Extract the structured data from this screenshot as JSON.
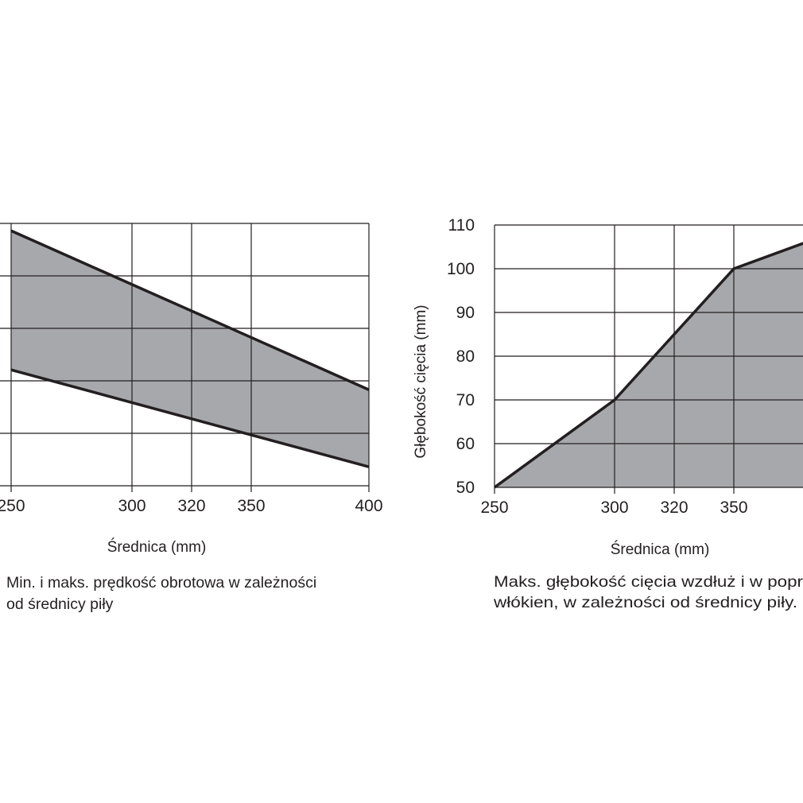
{
  "chart_data": [
    {
      "type": "area",
      "xlabel": "Średnica (mm)",
      "ylabel": "",
      "caption": [
        "Min. i maks. prędkość obrotowa w zależności",
        "od średnicy piły"
      ],
      "x_ticks": [
        250,
        300,
        320,
        350,
        400
      ],
      "x": [
        250,
        400
      ],
      "ylim": [
        0,
        5
      ],
      "y_tick_labels_visible": false,
      "grid": true,
      "series": [
        {
          "values": [
            4.86,
            1.83
          ]
        },
        {
          "values": [
            2.21,
            0.36
          ]
        }
      ],
      "fill_color": "#a7a8ab",
      "line_color": "#231f20"
    },
    {
      "type": "area",
      "xlabel": "Średnica (mm)",
      "ylabel": "Głębokość cięcia (mm)",
      "caption": [
        "Maks. głębokość cięcia wzdłuż i w popr",
        "włókien, w zależności od średnicy piły."
      ],
      "x_ticks": [
        250,
        300,
        320,
        350
      ],
      "y_ticks": [
        50,
        60,
        70,
        80,
        90,
        100,
        110
      ],
      "ylim": [
        50,
        110
      ],
      "grid": true,
      "x": [
        250,
        300,
        350,
        400
      ],
      "values": [
        50,
        70,
        100,
        110
      ],
      "fill_color": "#a7a8ab",
      "line_color": "#231f20"
    }
  ]
}
